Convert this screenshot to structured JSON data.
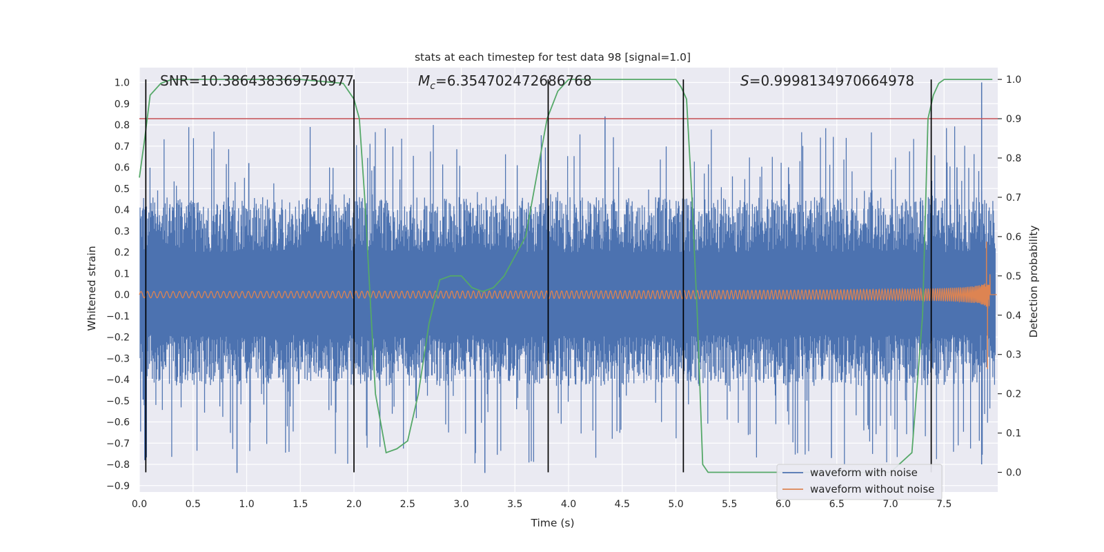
{
  "chart_data": {
    "type": "line",
    "title": "stats at each timestep for test data 98 [signal=1.0]",
    "xlabel": "Time (s)",
    "ylabel": "Whitened strain",
    "y2label": "Detection probability",
    "xlim": [
      0.0,
      8.0
    ],
    "ylim": [
      -0.93,
      1.07
    ],
    "y2lim": [
      -0.05,
      1.03
    ],
    "x_ticks": [
      "0.0",
      "0.5",
      "1.0",
      "1.5",
      "2.0",
      "2.5",
      "3.0",
      "3.5",
      "4.0",
      "4.5",
      "5.0",
      "5.5",
      "6.0",
      "6.5",
      "7.0",
      "7.5"
    ],
    "y_ticks": [
      "1.0",
      "0.9",
      "0.8",
      "0.7",
      "0.6",
      "0.5",
      "0.4",
      "0.3",
      "0.2",
      "0.1",
      "0.0",
      "−0.1",
      "−0.2",
      "−0.3",
      "−0.4",
      "−0.5",
      "−0.6",
      "−0.7",
      "−0.8",
      "−0.9"
    ],
    "y2_ticks": [
      "1.0",
      "0.9",
      "0.8",
      "0.7",
      "0.6",
      "0.5",
      "0.4",
      "0.3",
      "0.2",
      "0.1",
      "0.0"
    ],
    "grid": true,
    "legend_placement": "lower-right",
    "annotations": {
      "snr": "SNR=10.386438369750977",
      "mc_symbol": "M",
      "mc_sub": "c",
      "mc_value": "=6.354702472686768",
      "s_symbol": "S",
      "s_value": "=0.9998134970664978"
    },
    "series": [
      {
        "name": "waveform with noise",
        "color": "#4c72b0",
        "style": "noise band",
        "typical_range": [
          -0.4,
          0.45
        ],
        "extreme_max": 1.0,
        "extreme_min": -0.84
      },
      {
        "name": "waveform without noise",
        "color": "#dd8452",
        "style": "chirp",
        "amplitude_start": 0.015,
        "amplitude_peak": 0.25,
        "amplitude_min_peak": -0.35,
        "merger_time": 7.9
      }
    ],
    "detection_probability": {
      "color": "#55a868",
      "x": [
        0.0,
        0.05,
        0.1,
        0.2,
        0.3,
        0.5,
        1.0,
        1.5,
        1.9,
        2.0,
        2.05,
        2.1,
        2.15,
        2.2,
        2.3,
        2.4,
        2.5,
        2.6,
        2.7,
        2.8,
        2.9,
        3.0,
        3.1,
        3.2,
        3.3,
        3.4,
        3.5,
        3.6,
        3.7,
        3.8,
        3.9,
        4.0,
        4.5,
        5.0,
        5.05,
        5.1,
        5.15,
        5.2,
        5.25,
        5.3,
        5.5,
        6.0,
        6.5,
        7.0,
        7.2,
        7.3,
        7.35,
        7.4,
        7.45,
        7.5,
        7.6,
        7.95
      ],
      "y": [
        0.75,
        0.85,
        0.96,
        0.99,
        1.0,
        1.0,
        1.0,
        1.0,
        0.99,
        0.95,
        0.9,
        0.7,
        0.45,
        0.2,
        0.05,
        0.06,
        0.08,
        0.2,
        0.38,
        0.49,
        0.5,
        0.5,
        0.47,
        0.46,
        0.47,
        0.5,
        0.55,
        0.6,
        0.75,
        0.9,
        0.97,
        1.0,
        1.0,
        1.0,
        0.98,
        0.95,
        0.7,
        0.4,
        0.02,
        0.0,
        0.0,
        0.0,
        0.0,
        0.0,
        0.05,
        0.4,
        0.9,
        0.96,
        0.99,
        1.0,
        1.0,
        1.0
      ]
    },
    "threshold": {
      "y2": 0.9,
      "color": "#c44e52"
    },
    "vertical_lines": [
      0.06,
      2.0,
      3.81,
      5.07,
      7.38
    ]
  }
}
